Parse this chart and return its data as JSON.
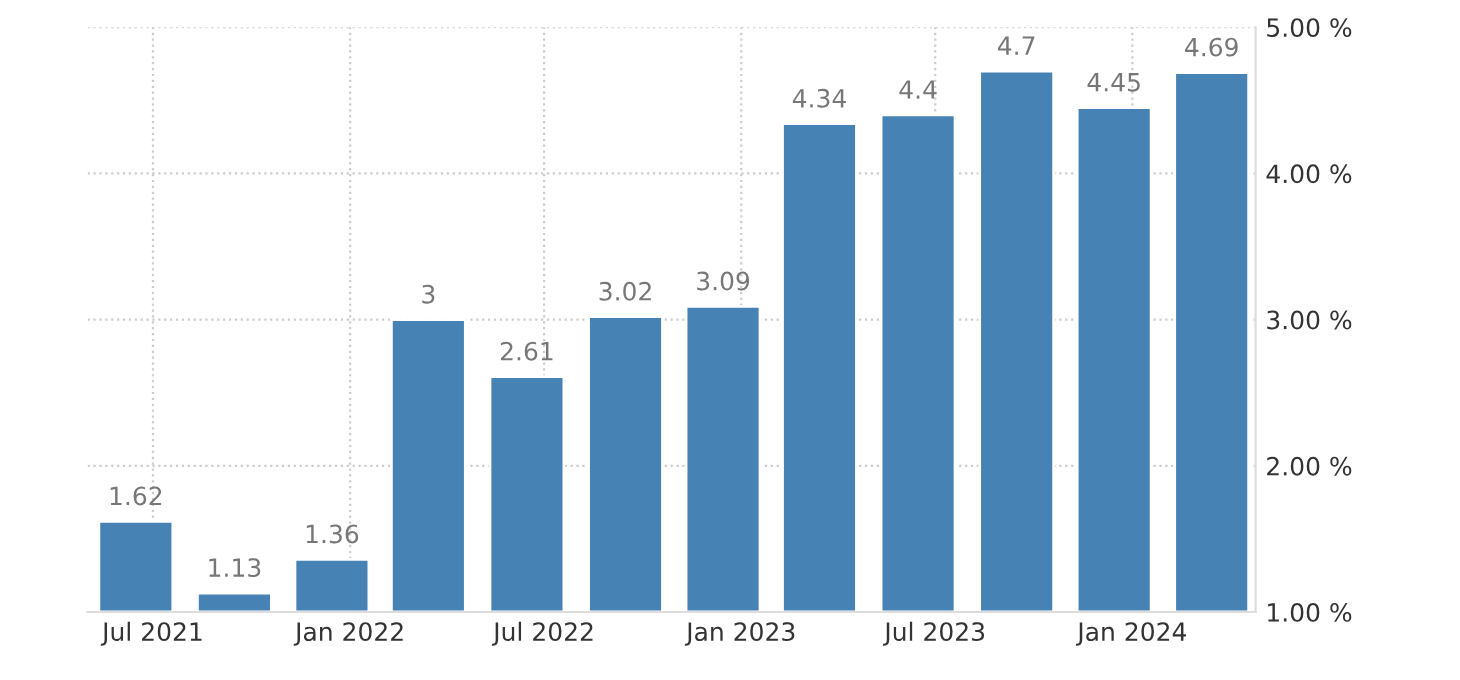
{
  "chart_data": {
    "type": "bar",
    "x": [
      "2021-06-15",
      "2021-09-15",
      "2021-12-15",
      "2022-03-15",
      "2022-06-15",
      "2022-09-15",
      "2022-12-15",
      "2023-03-15",
      "2023-06-15",
      "2023-09-15",
      "2023-12-15",
      "2024-03-15"
    ],
    "series": [
      {
        "color": "#4682b4",
        "values": [
          1.62,
          1.13,
          1.36,
          3,
          2.61,
          3.02,
          3.09,
          4.34,
          4.4,
          4.7,
          4.45,
          4.69
        ]
      }
    ],
    "data_labels": true,
    "xlim": [
      "2021-05-01",
      "2024-04-25"
    ],
    "xticks": [
      {
        "value": "2021-07-01",
        "label": "Jul 2021"
      },
      {
        "value": "2022-01-01",
        "label": "Jan 2022"
      },
      {
        "value": "2022-07-01",
        "label": "Jul 2022"
      },
      {
        "value": "2023-01-01",
        "label": "Jan 2023"
      },
      {
        "value": "2023-07-01",
        "label": "Jul 2023"
      },
      {
        "value": "2024-01-01",
        "label": "Jan 2024"
      }
    ],
    "ylim": [
      1,
      5
    ],
    "yticks": [
      {
        "value": 1,
        "label": "1.00 %"
      },
      {
        "value": 2,
        "label": "2.00 %"
      },
      {
        "value": 3,
        "label": "3.00 %"
      },
      {
        "value": 4,
        "label": "4.00 %"
      },
      {
        "value": 5,
        "label": "5.00 %"
      }
    ],
    "grid": true,
    "legend": false
  }
}
